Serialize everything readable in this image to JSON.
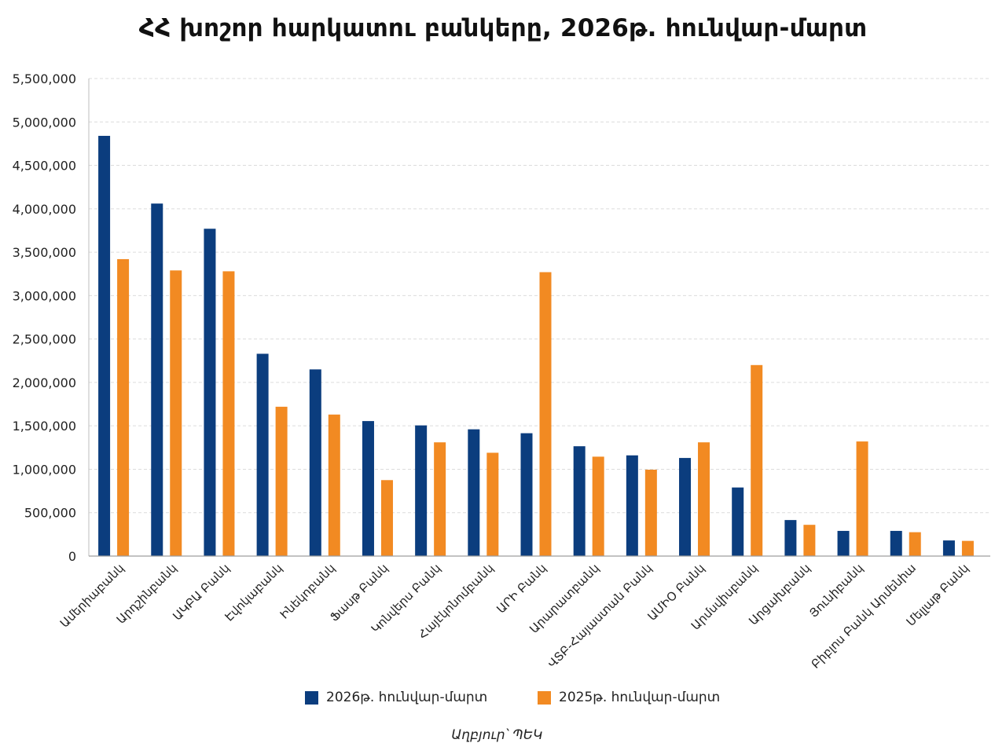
{
  "chart_data": {
    "type": "bar",
    "title": "ՀՀ խոշոր հարկատու բանկերը, 2026թ. հունվար-մարտ",
    "xlabel": "",
    "ylabel": "",
    "ylim": [
      0,
      5500000
    ],
    "yticks": [
      0,
      500000,
      1000000,
      1500000,
      2000000,
      2500000,
      3000000,
      3500000,
      4000000,
      4500000,
      5000000,
      5500000
    ],
    "ytick_labels": [
      "0",
      "500,000",
      "1,000,000",
      "1,500,000",
      "2,000,000",
      "2,500,000",
      "3,000,000",
      "3,500,000",
      "4,000,000",
      "4,500,000",
      "5,000,000",
      "5,500,000"
    ],
    "grid": true,
    "legend_position": "bottom",
    "categories": [
      "Ամերիաբանկ",
      "Արդշինբանկ",
      "ԱԿԲԱ Բանկ",
      "Էվոկաբանկ",
      "Ինեկոբանկ",
      "Ֆասթ Բանկ",
      "Կոնվերս Բանկ",
      "Հայէկոնոմբանկ",
      "ԱՐԻ Բանկ",
      "Արարատբանկ",
      "ՎՏԲ-Հայաստան Բանկ",
      "ԱՄԻՕ Բանկ",
      "Արմսվիսբանկ",
      "Արցախբանկ",
      "Յունիբանկ",
      "Բիբլոս Բանկ Արմենիա",
      "Մելլաթ Բանկ"
    ],
    "series": [
      {
        "name": "2026թ. հունվար-մարտ",
        "color": "#0b3d7e",
        "values": [
          4840000,
          4060000,
          3770000,
          2330000,
          2150000,
          1555000,
          1505000,
          1460000,
          1415000,
          1265000,
          1160000,
          1130000,
          790000,
          415000,
          290000,
          290000,
          180000
        ]
      },
      {
        "name": "2025թ. հունվար-մարտ",
        "color": "#f28a22",
        "values": [
          3420000,
          3290000,
          3280000,
          1720000,
          1630000,
          875000,
          1310000,
          1190000,
          3270000,
          1145000,
          995000,
          1310000,
          2200000,
          360000,
          1320000,
          275000,
          175000
        ]
      }
    ]
  },
  "source_note": "Աղբյուր՝ ՊԵԿ"
}
